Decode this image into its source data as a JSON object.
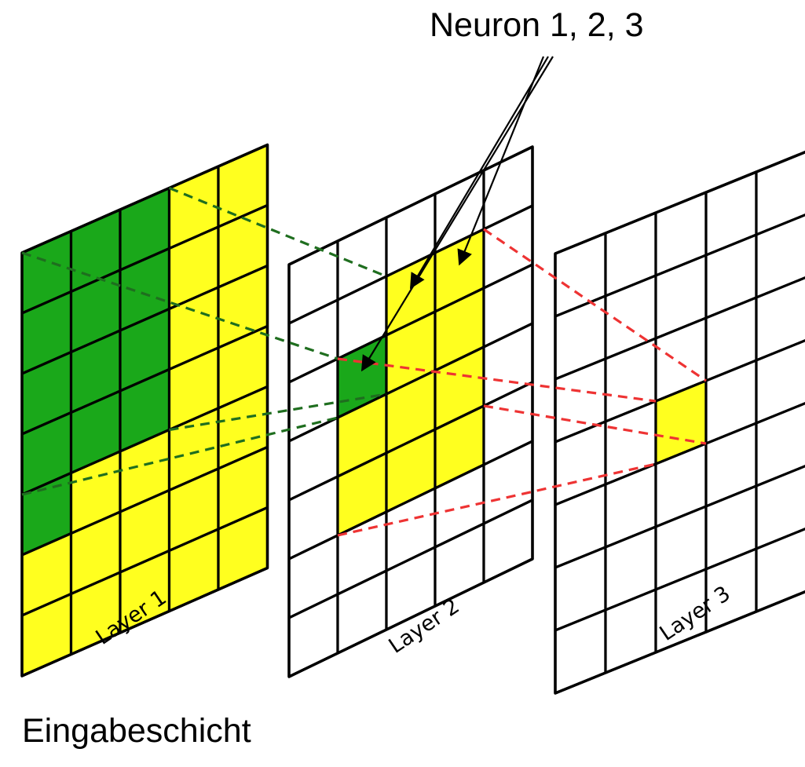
{
  "annotation": "Neuron 1, 2, 3",
  "caption": "Eingabeschicht",
  "colors": {
    "green": "#1aa81a",
    "yellow": "#ffff1f",
    "empty": "#ffffff",
    "grid": "#000000",
    "green_dash": "#1f6e1f",
    "red_dash": "#ee3333"
  },
  "layers": [
    {
      "label": "Layer 1",
      "cols": 5,
      "rows": 7,
      "cells": [
        [
          "green",
          "green",
          "green",
          "yellow",
          "yellow"
        ],
        [
          "green",
          "green",
          "green",
          "yellow",
          "yellow"
        ],
        [
          "green",
          "green",
          "green",
          "yellow",
          "yellow"
        ],
        [
          "green",
          "green",
          "green",
          "yellow",
          "yellow"
        ],
        [
          "green",
          "yellow",
          "yellow",
          "yellow",
          "yellow"
        ],
        [
          "yellow",
          "yellow",
          "yellow",
          "yellow",
          "yellow"
        ],
        [
          "yellow",
          "yellow",
          "yellow",
          "yellow",
          "yellow"
        ]
      ]
    },
    {
      "label": "Layer 2",
      "cols": 5,
      "rows": 7,
      "cells": [
        [
          "empty",
          "empty",
          "empty",
          "empty",
          "empty"
        ],
        [
          "empty",
          "empty",
          "yellow",
          "yellow",
          "empty"
        ],
        [
          "empty",
          "green",
          "yellow",
          "yellow",
          "empty"
        ],
        [
          "empty",
          "yellow",
          "yellow",
          "yellow",
          "empty"
        ],
        [
          "empty",
          "yellow",
          "yellow",
          "yellow",
          "empty"
        ],
        [
          "empty",
          "empty",
          "empty",
          "empty",
          "empty"
        ],
        [
          "empty",
          "empty",
          "empty",
          "empty",
          "empty"
        ]
      ]
    },
    {
      "label": "Layer 3",
      "cols": 5,
      "rows": 7,
      "cells": [
        [
          "empty",
          "empty",
          "empty",
          "empty",
          "empty"
        ],
        [
          "empty",
          "empty",
          "empty",
          "empty",
          "empty"
        ],
        [
          "empty",
          "empty",
          "empty",
          "empty",
          "empty"
        ],
        [
          "empty",
          "empty",
          "yellow",
          "empty",
          "empty"
        ],
        [
          "empty",
          "empty",
          "empty",
          "empty",
          "empty"
        ],
        [
          "empty",
          "empty",
          "empty",
          "empty",
          "empty"
        ],
        [
          "empty",
          "empty",
          "empty",
          "empty",
          "empty"
        ]
      ]
    }
  ]
}
